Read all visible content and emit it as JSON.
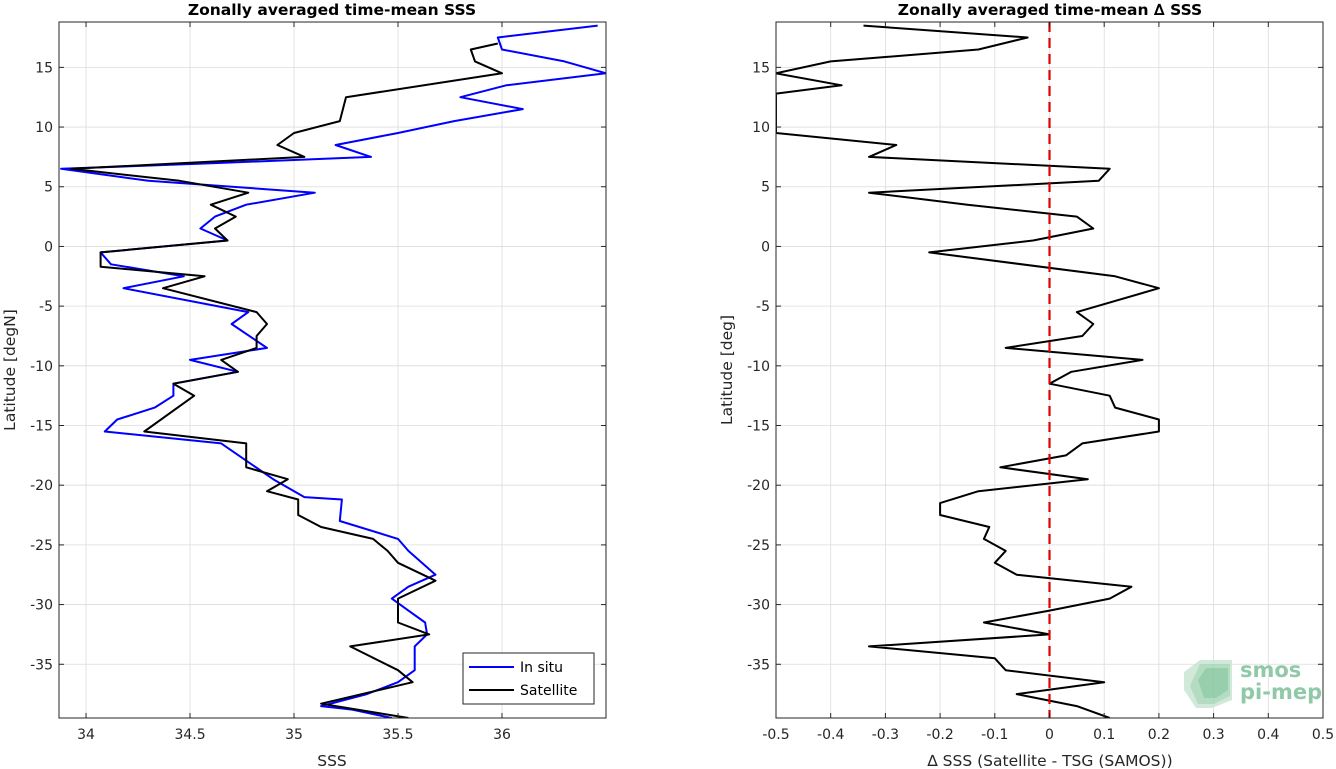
{
  "chart_data": [
    {
      "type": "line",
      "title": "Zonally averaged time-mean SSS",
      "xlabel": "SSS",
      "ylabel": "Latitude [degN]",
      "xlim": [
        33.87,
        36.5
      ],
      "ylim": [
        -39.5,
        18.8
      ],
      "xticks": [
        34,
        34.5,
        35,
        35.5,
        36
      ],
      "xtick_labels": [
        "34",
        "34.5",
        "35",
        "35.5",
        "36"
      ],
      "yticks": [
        15,
        10,
        5,
        0,
        -5,
        -10,
        -15,
        -20,
        -25,
        -30,
        -35
      ],
      "ytick_labels": [
        "15",
        "10",
        "5",
        "0",
        "-5",
        "-10",
        "-15",
        "-20",
        "-25",
        "-30",
        "-35"
      ],
      "grid": true,
      "legend_position": "bottom-right",
      "series": [
        {
          "name": "In situ",
          "color": "#0000ff",
          "points": [
            [
              36.46,
              18.5
            ],
            [
              35.98,
              17.5
            ],
            [
              36.0,
              16.5
            ],
            [
              36.3,
              15.5
            ],
            [
              36.5,
              14.5
            ],
            [
              36.02,
              13.5
            ],
            [
              35.8,
              12.5
            ],
            [
              36.1,
              11.5
            ],
            [
              35.77,
              10.5
            ],
            [
              35.5,
              9.5
            ],
            [
              35.2,
              8.5
            ],
            [
              35.37,
              7.5
            ],
            [
              34.65,
              7.0
            ],
            [
              33.88,
              6.5
            ],
            [
              34.3,
              5.5
            ],
            [
              35.1,
              4.5
            ],
            [
              34.77,
              3.5
            ],
            [
              34.62,
              2.5
            ],
            [
              34.55,
              1.5
            ],
            [
              34.68,
              0.5
            ],
            [
              34.07,
              -0.5
            ],
            [
              34.12,
              -1.5
            ],
            [
              34.47,
              -2.5
            ],
            [
              34.18,
              -3.5
            ],
            [
              34.78,
              -5.5
            ],
            [
              34.7,
              -6.5
            ],
            [
              34.87,
              -8.5
            ],
            [
              34.5,
              -9.5
            ],
            [
              34.73,
              -10.5
            ],
            [
              34.42,
              -11.5
            ],
            [
              34.42,
              -12.5
            ],
            [
              34.33,
              -13.5
            ],
            [
              34.15,
              -14.5
            ],
            [
              34.09,
              -15.5
            ],
            [
              34.65,
              -16.5
            ],
            [
              34.9,
              -19.5
            ],
            [
              35.05,
              -21.0
            ],
            [
              35.23,
              -21.2
            ],
            [
              35.22,
              -23.0
            ],
            [
              35.5,
              -24.5
            ],
            [
              35.55,
              -25.5
            ],
            [
              35.68,
              -27.5
            ],
            [
              35.55,
              -28.5
            ],
            [
              35.47,
              -29.5
            ],
            [
              35.55,
              -30.5
            ],
            [
              35.63,
              -31.5
            ],
            [
              35.64,
              -32.5
            ],
            [
              35.58,
              -33.5
            ],
            [
              35.58,
              -35.5
            ],
            [
              35.5,
              -36.5
            ],
            [
              35.35,
              -37.5
            ],
            [
              35.13,
              -38.5
            ],
            [
              35.28,
              -38.8
            ],
            [
              35.47,
              -39.5
            ]
          ]
        },
        {
          "name": "Satellite",
          "color": "#000000",
          "points": [
            [
              35.98,
              17.0
            ],
            [
              35.85,
              16.5
            ],
            [
              35.87,
              15.5
            ],
            [
              36.0,
              14.5
            ],
            [
              35.25,
              12.5
            ],
            [
              35.22,
              10.5
            ],
            [
              35.0,
              9.5
            ],
            [
              34.92,
              8.5
            ],
            [
              35.05,
              7.5
            ],
            [
              33.93,
              6.5
            ],
            [
              34.45,
              5.5
            ],
            [
              34.78,
              4.5
            ],
            [
              34.6,
              3.5
            ],
            [
              34.72,
              2.5
            ],
            [
              34.62,
              1.5
            ],
            [
              34.68,
              0.5
            ],
            [
              34.07,
              -0.5
            ],
            [
              34.07,
              -1.7
            ],
            [
              34.57,
              -2.5
            ],
            [
              34.37,
              -3.5
            ],
            [
              34.82,
              -5.5
            ],
            [
              34.87,
              -6.5
            ],
            [
              34.82,
              -7.5
            ],
            [
              34.82,
              -8.5
            ],
            [
              34.65,
              -9.5
            ],
            [
              34.73,
              -10.5
            ],
            [
              34.42,
              -11.5
            ],
            [
              34.52,
              -12.5
            ],
            [
              34.28,
              -15.5
            ],
            [
              34.77,
              -16.5
            ],
            [
              34.77,
              -18.5
            ],
            [
              34.97,
              -19.5
            ],
            [
              34.87,
              -20.5
            ],
            [
              35.02,
              -21.2
            ],
            [
              35.02,
              -22.5
            ],
            [
              35.13,
              -23.5
            ],
            [
              35.38,
              -24.5
            ],
            [
              35.45,
              -25.5
            ],
            [
              35.5,
              -26.5
            ],
            [
              35.68,
              -28.0
            ],
            [
              35.5,
              -29.5
            ],
            [
              35.5,
              -31.5
            ],
            [
              35.65,
              -32.5
            ],
            [
              35.27,
              -33.5
            ],
            [
              35.5,
              -35.5
            ],
            [
              35.57,
              -36.5
            ],
            [
              35.13,
              -38.3
            ],
            [
              35.55,
              -39.5
            ]
          ]
        }
      ]
    },
    {
      "type": "line",
      "title": "Zonally averaged time-mean ∆ SSS",
      "xlabel": "∆ SSS (Satellite - TSG (SAMOS))",
      "ylabel": "Latitude [deg]",
      "xlim": [
        -0.5,
        0.5
      ],
      "ylim": [
        -39.5,
        18.8
      ],
      "xticks": [
        -0.5,
        -0.4,
        -0.3,
        -0.2,
        -0.1,
        0,
        0.1,
        0.2,
        0.3,
        0.4,
        0.5
      ],
      "xtick_labels": [
        "-0.5",
        "-0.4",
        "-0.3",
        "-0.2",
        "-0.1",
        "0",
        "0.1",
        "0.2",
        "0.3",
        "0.4",
        "0.5"
      ],
      "yticks": [
        15,
        10,
        5,
        0,
        -5,
        -10,
        -15,
        -20,
        -25,
        -30,
        -35
      ],
      "ytick_labels": [
        "15",
        "10",
        "5",
        "0",
        "-5",
        "-10",
        "-15",
        "-20",
        "-25",
        "-30",
        "-35"
      ],
      "grid": true,
      "reference_line": {
        "x": 0,
        "color": "#e00000",
        "style": "dashed"
      },
      "series": [
        {
          "color": "#000000",
          "points": [
            [
              -0.34,
              18.5
            ],
            [
              -0.04,
              17.5
            ],
            [
              -0.13,
              16.5
            ],
            [
              -0.4,
              15.5
            ],
            [
              -0.5,
              14.5
            ],
            [
              -0.38,
              13.5
            ],
            [
              -0.5,
              12.8
            ],
            [
              -0.5,
              9.5
            ],
            [
              -0.28,
              8.5
            ],
            [
              -0.33,
              7.5
            ],
            [
              0.11,
              6.5
            ],
            [
              0.09,
              5.5
            ],
            [
              -0.33,
              4.5
            ],
            [
              -0.15,
              3.5
            ],
            [
              0.05,
              2.5
            ],
            [
              0.08,
              1.5
            ],
            [
              -0.03,
              0.5
            ],
            [
              -0.22,
              -0.5
            ],
            [
              0.12,
              -2.5
            ],
            [
              0.2,
              -3.5
            ],
            [
              0.05,
              -5.5
            ],
            [
              0.08,
              -6.5
            ],
            [
              0.06,
              -7.5
            ],
            [
              -0.08,
              -8.5
            ],
            [
              0.17,
              -9.5
            ],
            [
              0.04,
              -10.5
            ],
            [
              0.0,
              -11.5
            ],
            [
              0.11,
              -12.5
            ],
            [
              0.12,
              -13.5
            ],
            [
              0.2,
              -14.5
            ],
            [
              0.2,
              -15.5
            ],
            [
              0.06,
              -16.5
            ],
            [
              0.03,
              -17.5
            ],
            [
              -0.09,
              -18.5
            ],
            [
              0.07,
              -19.5
            ],
            [
              -0.13,
              -20.5
            ],
            [
              -0.2,
              -21.5
            ],
            [
              -0.2,
              -22.5
            ],
            [
              -0.11,
              -23.5
            ],
            [
              -0.12,
              -24.5
            ],
            [
              -0.08,
              -25.5
            ],
            [
              -0.1,
              -26.5
            ],
            [
              -0.06,
              -27.5
            ],
            [
              0.15,
              -28.5
            ],
            [
              0.11,
              -29.5
            ],
            [
              0.0,
              -30.5
            ],
            [
              -0.12,
              -31.5
            ],
            [
              0.0,
              -32.5
            ],
            [
              -0.33,
              -33.5
            ],
            [
              -0.1,
              -34.5
            ],
            [
              -0.08,
              -35.5
            ],
            [
              0.1,
              -36.5
            ],
            [
              -0.06,
              -37.5
            ],
            [
              0.05,
              -38.5
            ],
            [
              0.11,
              -39.5
            ]
          ]
        }
      ]
    }
  ],
  "watermark": {
    "line1": "smos",
    "line2": "pi-mep",
    "color": "#8fc9a8"
  }
}
